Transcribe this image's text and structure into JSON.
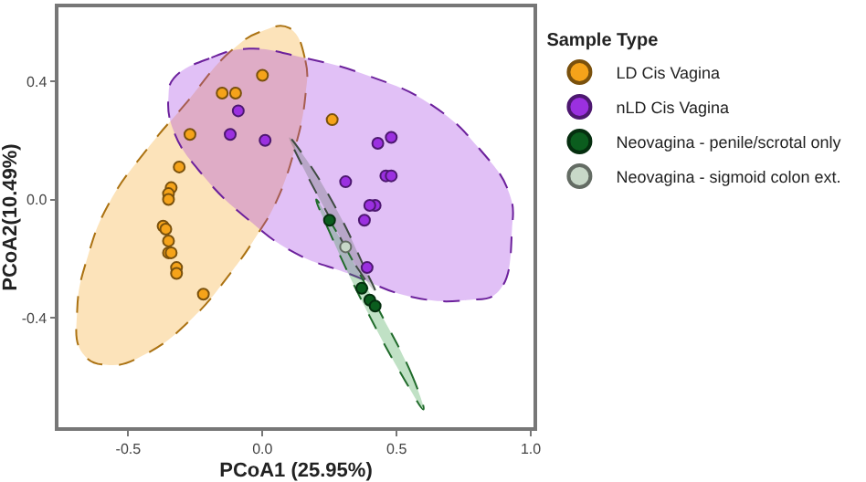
{
  "chart_data": {
    "type": "scatter",
    "xlabel": "PCoA1 (25.95%)",
    "ylabel": "PCoA2(10.49%)",
    "legend_title": "Sample Type",
    "legend": "right",
    "xlim": [
      -0.76,
      1.01
    ],
    "xticks": [
      {
        "value": -0.5,
        "label": "-0.5"
      },
      {
        "value": 0,
        "label": "0.0"
      },
      {
        "value": 0.5,
        "label": "0.5"
      },
      {
        "value": 1,
        "label": "1.0"
      }
    ],
    "ylim": [
      -0.77,
      0.65
    ],
    "yticks": [
      {
        "value": -0.4,
        "label": "-0.4"
      },
      {
        "value": 0,
        "label": "0.0"
      },
      {
        "value": 0.4,
        "label": "0.4"
      }
    ],
    "series": [
      {
        "type": "area",
        "marker": "none",
        "line_style": "dashed",
        "color": "#f5a31a",
        "x": [
          0.1,
          0.16,
          0.16,
          0.12,
          0.05,
          -0.02,
          -0.12,
          -0.26,
          -0.43,
          -0.57,
          -0.67,
          -0.69,
          -0.65,
          -0.57,
          -0.43,
          -0.29,
          -0.12,
          0.0,
          0.1
        ],
        "values": [
          0.58,
          0.47,
          0.35,
          0.17,
          -0.01,
          -0.12,
          -0.25,
          -0.4,
          -0.52,
          -0.56,
          -0.52,
          -0.37,
          -0.19,
          -0.01,
          0.17,
          0.32,
          0.5,
          0.57,
          0.58
        ]
      },
      {
        "type": "area",
        "marker": "none",
        "line_style": "dashed",
        "color": "#9b30e0",
        "x": [
          -0.33,
          -0.19,
          -0.05,
          0.15,
          0.39,
          0.63,
          0.81,
          0.92,
          0.93,
          0.88,
          0.76,
          0.56,
          0.32,
          0.12,
          -0.05,
          -0.22,
          -0.33,
          -0.35,
          -0.33
        ],
        "values": [
          0.41,
          0.48,
          0.51,
          0.48,
          0.42,
          0.32,
          0.17,
          0.02,
          -0.1,
          -0.31,
          -0.34,
          -0.33,
          -0.25,
          -0.18,
          -0.07,
          0.08,
          0.23,
          0.35,
          0.41
        ]
      },
      {
        "type": "area",
        "marker": "none",
        "line_style": "dashed",
        "color": "#2e9a3e",
        "x": [
          0.6,
          0.56,
          0.42,
          0.27,
          0.2,
          0.25,
          0.38,
          0.53,
          0.6
        ],
        "values": [
          -0.71,
          -0.6,
          -0.35,
          -0.1,
          0.0,
          -0.11,
          -0.36,
          -0.61,
          -0.71
        ]
      },
      {
        "type": "area",
        "marker": "none",
        "line_style": "dashed",
        "color": "#5a6b5e",
        "x": [
          0.42,
          0.38,
          0.28,
          0.16,
          0.1,
          0.14,
          0.25,
          0.36,
          0.42
        ],
        "values": [
          -0.31,
          -0.23,
          -0.04,
          0.14,
          0.21,
          0.13,
          -0.06,
          -0.24,
          -0.31
        ]
      },
      {
        "name": "LD Cis Vagina",
        "marker": "circle",
        "color": "#f5a31a",
        "x": [
          0.0,
          -0.15,
          -0.1,
          -0.27,
          0.26,
          -0.31,
          -0.34,
          -0.35,
          -0.35,
          -0.37,
          -0.36,
          -0.35,
          -0.35,
          -0.34,
          -0.32,
          -0.32,
          -0.22
        ],
        "values": [
          0.42,
          0.36,
          0.36,
          0.22,
          0.27,
          0.11,
          0.04,
          0.02,
          0.0,
          -0.09,
          -0.1,
          -0.14,
          -0.18,
          -0.18,
          -0.23,
          -0.25,
          -0.32
        ]
      },
      {
        "name": "nLD Cis Vagina",
        "marker": "circle",
        "color": "#9b30e0",
        "x": [
          -0.09,
          -0.12,
          0.01,
          0.48,
          0.43,
          0.46,
          0.48,
          0.31,
          0.42,
          0.4,
          0.38,
          0.39
        ],
        "values": [
          0.3,
          0.22,
          0.2,
          0.21,
          0.19,
          0.08,
          0.08,
          0.06,
          -0.02,
          -0.02,
          -0.07,
          -0.23
        ]
      },
      {
        "name": "Neovagina - penile/scrotal only",
        "marker": "circle",
        "color": "#0b5d1e",
        "x": [
          0.25,
          0.37,
          0.4,
          0.42
        ],
        "values": [
          -0.07,
          -0.3,
          -0.34,
          -0.36
        ]
      },
      {
        "name": "Neovagina - sigmoid colon ext.",
        "marker": "circle",
        "color": "#c8d8c8",
        "x": [
          0.31
        ],
        "values": [
          -0.16
        ]
      }
    ]
  }
}
